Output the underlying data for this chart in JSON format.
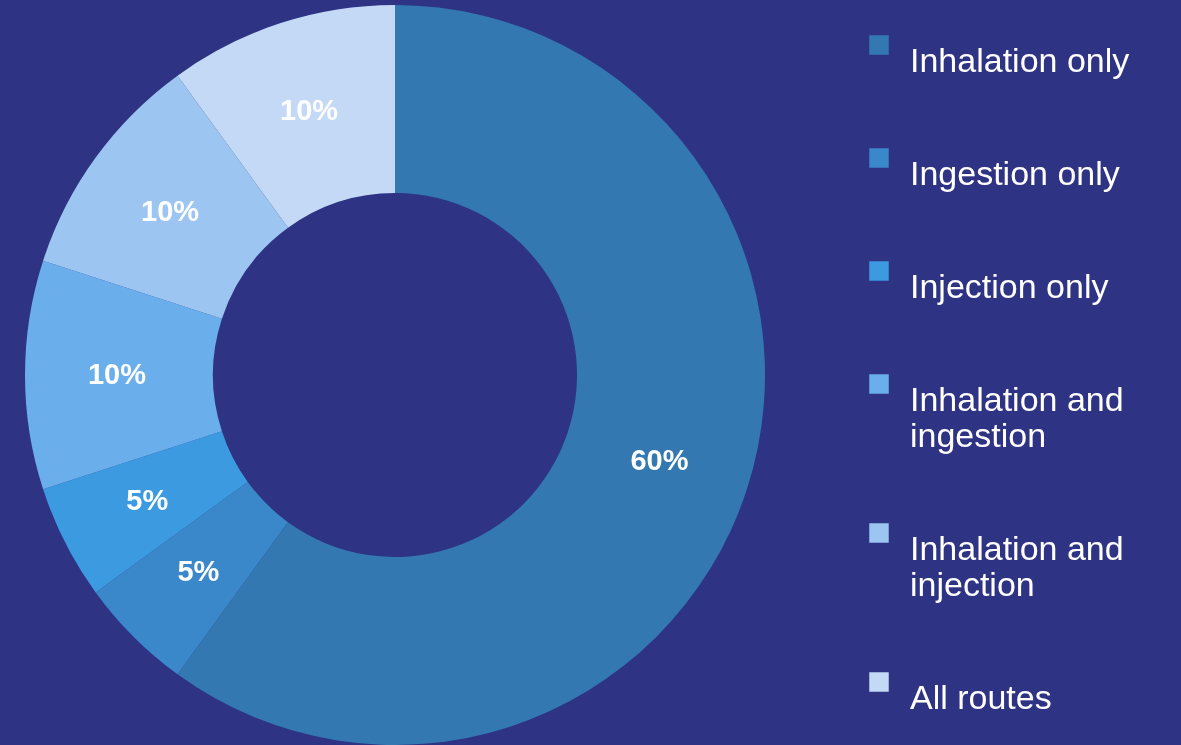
{
  "chart_data": {
    "type": "donut",
    "categories": [
      "Inhalation only",
      "Ingestion only",
      "Injection only",
      "Inhalation and ingestion",
      "Inhalation and injection",
      "All routes"
    ],
    "values": [
      60,
      5,
      5,
      10,
      10,
      10
    ],
    "colors": [
      "#3378b0",
      "#3a87c9",
      "#3b9ae0",
      "#6aafec",
      "#9cc5f1",
      "#c4d9f5"
    ],
    "value_labels": [
      "60%",
      "5%",
      "5%",
      "10%",
      "10%",
      "10%"
    ],
    "legend": "right"
  }
}
